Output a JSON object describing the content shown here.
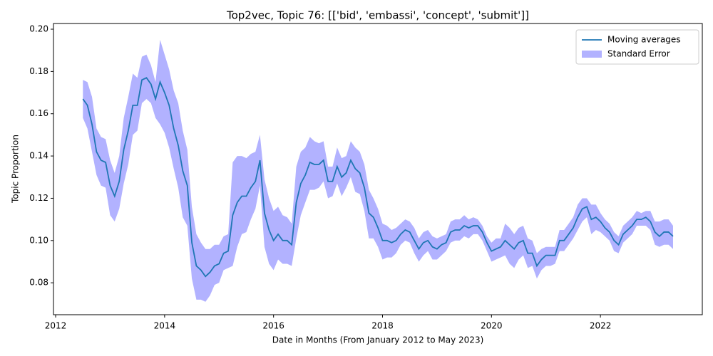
{
  "chart_data": {
    "type": "line",
    "title": "Top2vec, Topic 76: [['bid', 'embassi', 'concept', 'submit']]",
    "x_label": "Date in Months (From January 2012 to May 2023)",
    "y_label": "Topic Proportion",
    "x": [
      2012.5,
      2012.583,
      2012.667,
      2012.75,
      2012.833,
      2012.917,
      2013,
      2013.083,
      2013.167,
      2013.25,
      2013.333,
      2013.417,
      2013.5,
      2013.583,
      2013.667,
      2013.75,
      2013.833,
      2013.917,
      2014,
      2014.083,
      2014.167,
      2014.25,
      2014.333,
      2014.417,
      2014.5,
      2014.583,
      2014.667,
      2014.75,
      2014.833,
      2014.917,
      2015,
      2015.083,
      2015.167,
      2015.25,
      2015.333,
      2015.417,
      2015.5,
      2015.583,
      2015.667,
      2015.75,
      2015.833,
      2015.917,
      2016,
      2016.083,
      2016.167,
      2016.25,
      2016.333,
      2016.417,
      2016.5,
      2016.583,
      2016.667,
      2016.75,
      2016.833,
      2016.917,
      2017,
      2017.083,
      2017.167,
      2017.25,
      2017.333,
      2017.417,
      2017.5,
      2017.583,
      2017.667,
      2017.75,
      2017.833,
      2017.917,
      2018,
      2018.083,
      2018.167,
      2018.25,
      2018.333,
      2018.417,
      2018.5,
      2018.583,
      2018.667,
      2018.75,
      2018.833,
      2018.917,
      2019,
      2019.083,
      2019.167,
      2019.25,
      2019.333,
      2019.417,
      2019.5,
      2019.583,
      2019.667,
      2019.75,
      2019.833,
      2019.917,
      2020,
      2020.083,
      2020.167,
      2020.25,
      2020.333,
      2020.417,
      2020.5,
      2020.583,
      2020.667,
      2020.75,
      2020.833,
      2020.917,
      2021,
      2021.083,
      2021.167,
      2021.25,
      2021.333,
      2021.417,
      2021.5,
      2021.583,
      2021.667,
      2021.75,
      2021.833,
      2021.917,
      2022,
      2022.083,
      2022.167,
      2022.25,
      2022.333,
      2022.417,
      2022.5,
      2022.583,
      2022.667,
      2022.75,
      2022.833,
      2022.917,
      2023,
      2023.083,
      2023.167,
      2023.25,
      2023.333
    ],
    "series": [
      {
        "name": "Moving averages",
        "color": "#1f77b4",
        "values": [
          0.167,
          0.164,
          0.155,
          0.142,
          0.138,
          0.137,
          0.126,
          0.121,
          0.128,
          0.143,
          0.152,
          0.164,
          0.164,
          0.176,
          0.177,
          0.174,
          0.167,
          0.175,
          0.17,
          0.164,
          0.153,
          0.145,
          0.133,
          0.126,
          0.099,
          0.088,
          0.086,
          0.083,
          0.085,
          0.088,
          0.089,
          0.094,
          0.095,
          0.112,
          0.118,
          0.121,
          0.121,
          0.125,
          0.128,
          0.138,
          0.113,
          0.105,
          0.1,
          0.103,
          0.1,
          0.1,
          0.098,
          0.118,
          0.127,
          0.131,
          0.137,
          0.136,
          0.136,
          0.138,
          0.128,
          0.128,
          0.135,
          0.13,
          0.132,
          0.138,
          0.134,
          0.132,
          0.125,
          0.113,
          0.111,
          0.106,
          0.1,
          0.1,
          0.099,
          0.1,
          0.103,
          0.105,
          0.104,
          0.1,
          0.096,
          0.099,
          0.1,
          0.097,
          0.096,
          0.098,
          0.099,
          0.104,
          0.105,
          0.105,
          0.107,
          0.106,
          0.107,
          0.107,
          0.104,
          0.099,
          0.095,
          0.096,
          0.097,
          0.1,
          0.098,
          0.096,
          0.099,
          0.1,
          0.094,
          0.094,
          0.088,
          0.091,
          0.093,
          0.093,
          0.093,
          0.1,
          0.1,
          0.103,
          0.106,
          0.111,
          0.115,
          0.116,
          0.11,
          0.111,
          0.109,
          0.106,
          0.104,
          0.1,
          0.098,
          0.103,
          0.105,
          0.107,
          0.11,
          0.11,
          0.111,
          0.109,
          0.104,
          0.102,
          0.104,
          0.104,
          0.102
        ]
      }
    ],
    "band": {
      "name": "Standard Error",
      "color": "#0000ff",
      "opacity": 0.3,
      "upper": [
        0.176,
        0.175,
        0.168,
        0.153,
        0.149,
        0.148,
        0.138,
        0.132,
        0.14,
        0.158,
        0.168,
        0.179,
        0.177,
        0.187,
        0.188,
        0.183,
        0.175,
        0.195,
        0.188,
        0.181,
        0.171,
        0.165,
        0.152,
        0.143,
        0.116,
        0.103,
        0.099,
        0.096,
        0.096,
        0.098,
        0.098,
        0.102,
        0.103,
        0.137,
        0.14,
        0.14,
        0.139,
        0.141,
        0.142,
        0.15,
        0.129,
        0.12,
        0.114,
        0.116,
        0.112,
        0.111,
        0.108,
        0.135,
        0.142,
        0.144,
        0.149,
        0.147,
        0.146,
        0.147,
        0.135,
        0.135,
        0.144,
        0.139,
        0.14,
        0.147,
        0.144,
        0.142,
        0.136,
        0.124,
        0.12,
        0.115,
        0.108,
        0.107,
        0.105,
        0.106,
        0.108,
        0.11,
        0.109,
        0.106,
        0.101,
        0.104,
        0.105,
        0.102,
        0.101,
        0.102,
        0.103,
        0.109,
        0.11,
        0.11,
        0.112,
        0.11,
        0.111,
        0.11,
        0.107,
        0.102,
        0.099,
        0.101,
        0.101,
        0.108,
        0.106,
        0.103,
        0.106,
        0.107,
        0.101,
        0.1,
        0.094,
        0.096,
        0.097,
        0.097,
        0.097,
        0.105,
        0.105,
        0.108,
        0.111,
        0.117,
        0.12,
        0.12,
        0.117,
        0.117,
        0.113,
        0.11,
        0.108,
        0.104,
        0.102,
        0.107,
        0.109,
        0.111,
        0.114,
        0.113,
        0.114,
        0.114,
        0.109,
        0.109,
        0.11,
        0.11,
        0.107
      ],
      "lower": [
        0.158,
        0.153,
        0.142,
        0.131,
        0.126,
        0.125,
        0.112,
        0.109,
        0.115,
        0.127,
        0.136,
        0.15,
        0.152,
        0.165,
        0.167,
        0.165,
        0.158,
        0.155,
        0.151,
        0.144,
        0.134,
        0.125,
        0.111,
        0.107,
        0.082,
        0.072,
        0.072,
        0.071,
        0.074,
        0.079,
        0.08,
        0.086,
        0.087,
        0.088,
        0.097,
        0.103,
        0.104,
        0.11,
        0.115,
        0.126,
        0.097,
        0.089,
        0.086,
        0.091,
        0.089,
        0.089,
        0.088,
        0.101,
        0.112,
        0.118,
        0.124,
        0.124,
        0.125,
        0.128,
        0.12,
        0.121,
        0.127,
        0.121,
        0.125,
        0.13,
        0.123,
        0.122,
        0.114,
        0.101,
        0.101,
        0.097,
        0.091,
        0.092,
        0.092,
        0.094,
        0.098,
        0.1,
        0.099,
        0.094,
        0.09,
        0.093,
        0.095,
        0.091,
        0.091,
        0.093,
        0.095,
        0.099,
        0.1,
        0.1,
        0.102,
        0.101,
        0.103,
        0.103,
        0.1,
        0.095,
        0.09,
        0.091,
        0.092,
        0.093,
        0.089,
        0.087,
        0.091,
        0.093,
        0.087,
        0.088,
        0.082,
        0.086,
        0.088,
        0.088,
        0.089,
        0.095,
        0.095,
        0.098,
        0.101,
        0.105,
        0.109,
        0.111,
        0.103,
        0.105,
        0.104,
        0.102,
        0.1,
        0.095,
        0.094,
        0.099,
        0.101,
        0.103,
        0.107,
        0.107,
        0.107,
        0.105,
        0.098,
        0.097,
        0.098,
        0.098,
        0.096
      ]
    },
    "xlim": [
      2011.96,
      2023.87
    ],
    "ylim": [
      0.0649,
      0.2027
    ],
    "xticks": [
      2012,
      2014,
      2016,
      2018,
      2020,
      2022
    ],
    "yticks": [
      0.08,
      {
        "value": 0.1,
        "label": "0.10"
      },
      0.12,
      0.14,
      0.16,
      0.18,
      {
        "value": 0.2,
        "label": "0.20"
      }
    ],
    "legend": "upper right"
  }
}
